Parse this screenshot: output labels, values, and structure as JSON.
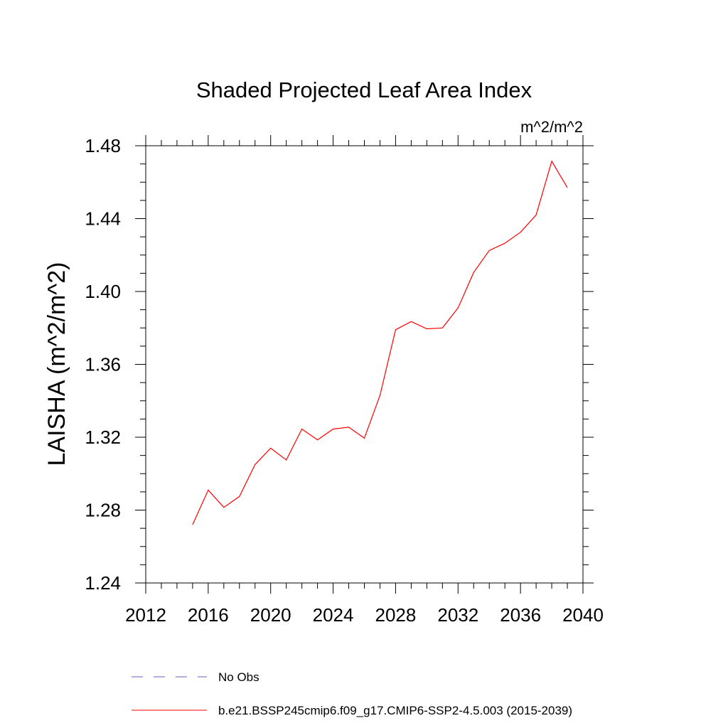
{
  "chart_data": {
    "type": "line",
    "title": "Shaded Projected Leaf Area Index",
    "units_label": "m^2/m^2",
    "xlabel": "",
    "ylabel": "LAISHA  (m^2/m^2)",
    "xlim": [
      2012,
      2040
    ],
    "ylim": [
      1.24,
      1.48
    ],
    "x_ticks": [
      2012,
      2016,
      2020,
      2024,
      2028,
      2032,
      2036,
      2040
    ],
    "x_tick_labels": [
      "2012",
      "2016",
      "2020",
      "2024",
      "2028",
      "2032",
      "2036",
      "2040"
    ],
    "y_ticks": [
      1.24,
      1.28,
      1.32,
      1.36,
      1.4,
      1.44,
      1.48
    ],
    "y_tick_labels": [
      "1.24",
      "1.28",
      "1.32",
      "1.36",
      "1.40",
      "1.44",
      "1.48"
    ],
    "grid": false,
    "legend_position": "bottom",
    "series": [
      {
        "name": "b.e21.BSSP245cmip6.f09_g17.CMIP6-SSP2-4.5.003 (2015-2039)",
        "color": "#ff0000",
        "style": "solid",
        "x": [
          2015,
          2016,
          2017,
          2018,
          2019,
          2020,
          2021,
          2022,
          2023,
          2024,
          2025,
          2026,
          2027,
          2028,
          2029,
          2030,
          2031,
          2032,
          2033,
          2034,
          2035,
          2036,
          2037,
          2038,
          2039
        ],
        "y": [
          1.272,
          1.291,
          1.2815,
          1.2875,
          1.305,
          1.314,
          1.3075,
          1.3245,
          1.3185,
          1.3245,
          1.3255,
          1.3195,
          1.343,
          1.379,
          1.3835,
          1.3795,
          1.38,
          1.391,
          1.4105,
          1.4225,
          1.4265,
          1.4325,
          1.442,
          1.4715,
          1.457
        ]
      }
    ],
    "legend": [
      {
        "label": "No Obs",
        "color": "#6a5acd",
        "style": "dashed"
      },
      {
        "label": "b.e21.BSSP245cmip6.f09_g17.CMIP6-SSP2-4.5.003 (2015-2039)",
        "color": "#ff0000",
        "style": "solid"
      }
    ]
  }
}
